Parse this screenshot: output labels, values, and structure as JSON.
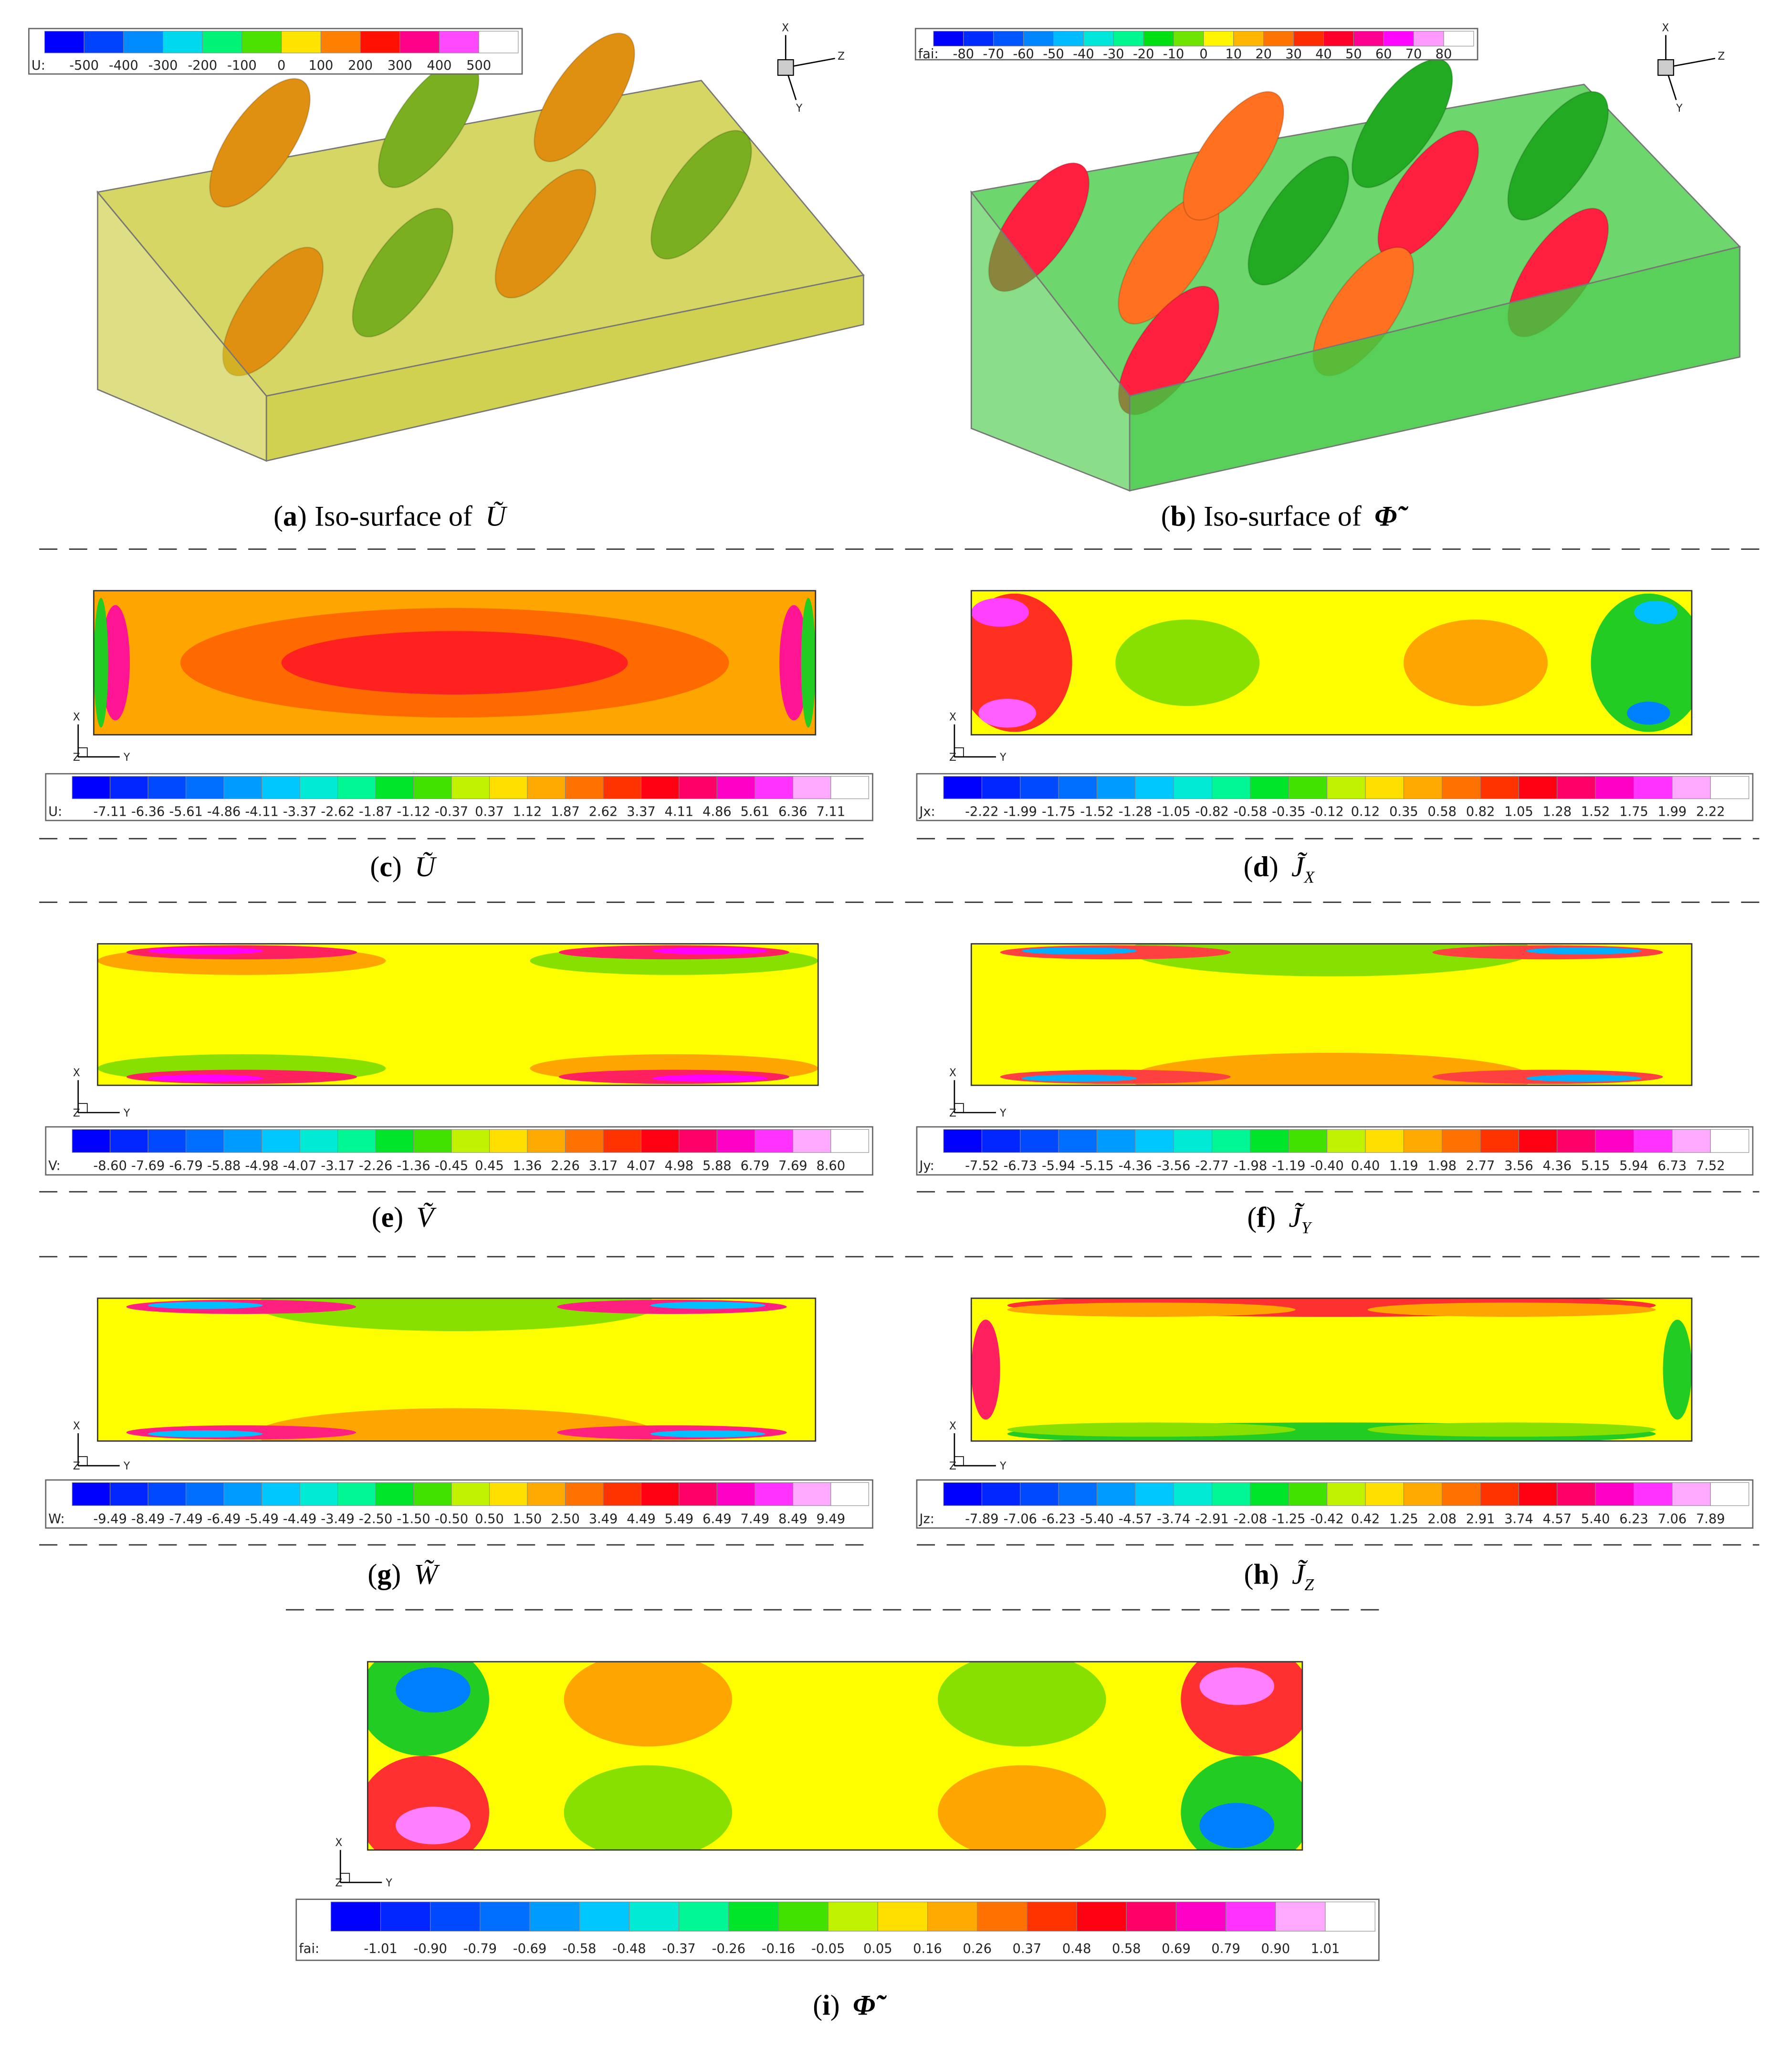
{
  "panels": [
    {
      "paren_open": "(",
      "letter": "a",
      "paren_close": ")",
      "text": "Iso-surface of",
      "symbol": "Ũ",
      "colorbar": {
        "variable": "U:",
        "ticks": [
          "-500",
          "-400",
          "-300",
          "-200",
          "-100",
          "0",
          "100",
          "200",
          "300",
          "400",
          "500"
        ]
      },
      "axes": [
        "X",
        "Z",
        "Y"
      ]
    },
    {
      "paren_open": "(",
      "letter": "b",
      "paren_close": ")",
      "text": "Iso-surface of",
      "symbol": "Φ̃",
      "colorbar": {
        "variable": "fai:",
        "ticks": [
          "-80",
          "-70",
          "-60",
          "-50",
          "-40",
          "-30",
          "-20",
          "-10",
          "0",
          "10",
          "20",
          "30",
          "40",
          "50",
          "60",
          "70",
          "80"
        ]
      },
      "axes": [
        "X",
        "Z",
        "Y"
      ]
    },
    {
      "paren_open": "(",
      "letter": "c",
      "paren_close": ")",
      "symbol": "Ũ",
      "colorbar": {
        "variable": "U:",
        "ticks": [
          "-7.11",
          "-6.36",
          "-5.61",
          "-4.86",
          "-4.11",
          "-3.37",
          "-2.62",
          "-1.87",
          "-1.12",
          "-0.37",
          "0.37",
          "1.12",
          "1.87",
          "2.62",
          "3.37",
          "4.11",
          "4.86",
          "5.61",
          "6.36",
          "7.11"
        ]
      },
      "axes": [
        "X",
        "Z",
        "Y"
      ]
    },
    {
      "paren_open": "(",
      "letter": "d",
      "paren_close": ")",
      "symbol": "J̃",
      "subscript": "X",
      "colorbar": {
        "variable": "Jx:",
        "ticks": [
          "-2.22",
          "-1.99",
          "-1.75",
          "-1.52",
          "-1.28",
          "-1.05",
          "-0.82",
          "-0.58",
          "-0.35",
          "-0.12",
          "0.12",
          "0.35",
          "0.58",
          "0.82",
          "1.05",
          "1.28",
          "1.52",
          "1.75",
          "1.99",
          "2.22"
        ]
      },
      "axes": [
        "X",
        "Z",
        "Y"
      ]
    },
    {
      "paren_open": "(",
      "letter": "e",
      "paren_close": ")",
      "symbol": "Ṽ",
      "colorbar": {
        "variable": "V:",
        "ticks": [
          "-8.60",
          "-7.69",
          "-6.79",
          "-5.88",
          "-4.98",
          "-4.07",
          "-3.17",
          "-2.26",
          "-1.36",
          "-0.45",
          "0.45",
          "1.36",
          "2.26",
          "3.17",
          "4.07",
          "4.98",
          "5.88",
          "6.79",
          "7.69",
          "8.60"
        ]
      },
      "axes": [
        "X",
        "Z",
        "Y"
      ]
    },
    {
      "paren_open": "(",
      "letter": "f",
      "paren_close": ")",
      "symbol": "J̃",
      "subscript": "Y",
      "colorbar": {
        "variable": "Jy:",
        "ticks": [
          "-7.52",
          "-6.73",
          "-5.94",
          "-5.15",
          "-4.36",
          "-3.56",
          "-2.77",
          "-1.98",
          "-1.19",
          "-0.40",
          "0.40",
          "1.19",
          "1.98",
          "2.77",
          "3.56",
          "4.36",
          "5.15",
          "5.94",
          "6.73",
          "7.52"
        ]
      },
      "axes": [
        "X",
        "Z",
        "Y"
      ]
    },
    {
      "paren_open": "(",
      "letter": "g",
      "paren_close": ")",
      "symbol": "W̃",
      "colorbar": {
        "variable": "W:",
        "ticks": [
          "-9.49",
          "-8.49",
          "-7.49",
          "-6.49",
          "-5.49",
          "-4.49",
          "-3.49",
          "-2.50",
          "-1.50",
          "-0.50",
          "0.50",
          "1.50",
          "2.50",
          "3.49",
          "4.49",
          "5.49",
          "6.49",
          "7.49",
          "8.49",
          "9.49"
        ]
      },
      "axes": [
        "X",
        "Z",
        "Y"
      ]
    },
    {
      "paren_open": "(",
      "letter": "h",
      "paren_close": ")",
      "symbol": "J̃",
      "subscript": "Z",
      "colorbar": {
        "variable": "Jz:",
        "ticks": [
          "-7.89",
          "-7.06",
          "-6.23",
          "-5.40",
          "-4.57",
          "-3.74",
          "-2.91",
          "-2.08",
          "-1.25",
          "-0.42",
          "0.42",
          "1.25",
          "2.08",
          "2.91",
          "3.74",
          "4.57",
          "5.40",
          "6.23",
          "7.06",
          "7.89"
        ]
      },
      "axes": [
        "X",
        "Z",
        "Y"
      ]
    },
    {
      "paren_open": "(",
      "letter": "i",
      "paren_close": ")",
      "symbol": "Φ̃",
      "colorbar": {
        "variable": "fai:",
        "ticks": [
          "-1.01",
          "-0.90",
          "-0.79",
          "-0.69",
          "-0.58",
          "-0.48",
          "-0.37",
          "-0.26",
          "-0.16",
          "-0.05",
          "0.05",
          "0.16",
          "0.26",
          "0.37",
          "0.48",
          "0.58",
          "0.69",
          "0.79",
          "0.90",
          "1.01"
        ]
      },
      "axes": [
        "X",
        "Z",
        "Y"
      ]
    }
  ]
}
